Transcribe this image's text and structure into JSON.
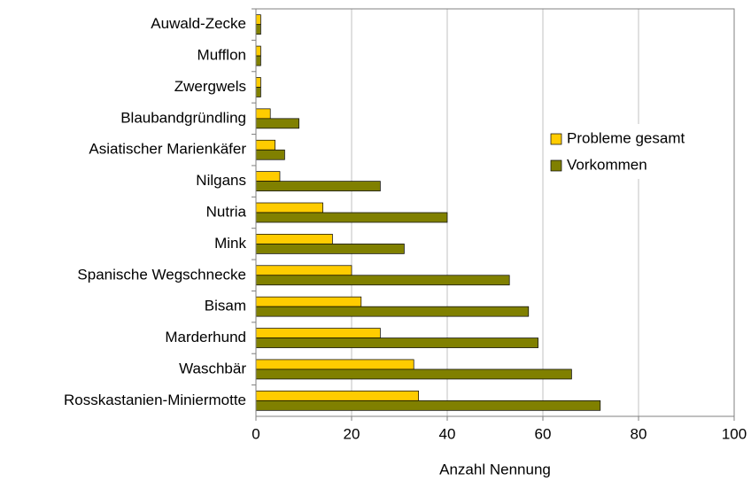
{
  "chart_data": {
    "type": "barh",
    "xlabel": "Anzahl Nennung",
    "categories": [
      "Auwald-Zecke",
      "Mufflon",
      "Zwergwels",
      "Blaubandgründling",
      "Asiatischer Marienkäfer",
      "Nilgans",
      "Nutria",
      "Mink",
      "Spanische Wegschnecke",
      "Bisam",
      "Marderhund",
      "Waschbär",
      "Rosskastanien-Miniermotte"
    ],
    "series": [
      {
        "name": "Probleme gesamt",
        "color": "#ffcc00",
        "values": [
          1,
          1,
          1,
          3,
          4,
          5,
          14,
          16,
          20,
          22,
          26,
          33,
          34
        ]
      },
      {
        "name": "Vorkommen",
        "color": "#808000",
        "values": [
          1,
          1,
          1,
          9,
          6,
          26,
          40,
          31,
          53,
          57,
          59,
          66,
          72
        ]
      }
    ],
    "xlim": [
      0,
      100
    ],
    "xticks": [
      0,
      20,
      40,
      60,
      80,
      100
    ],
    "grid": true,
    "legend": "right"
  }
}
